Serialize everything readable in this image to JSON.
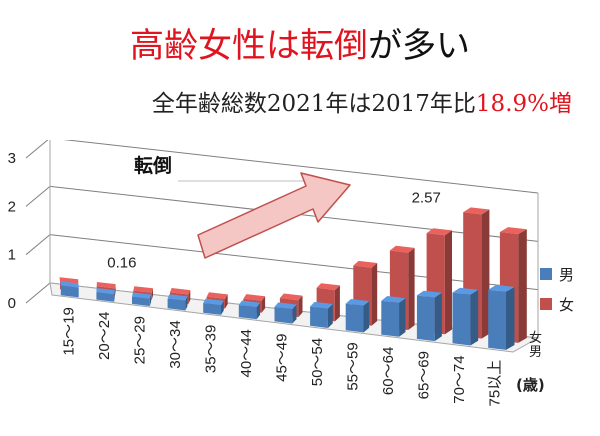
{
  "title": {
    "red_part": "高齢女性は転倒",
    "black_part": "が多い"
  },
  "subtitle": {
    "black_part": "全年齢総数2021年は2017年比",
    "red_part": "18.9%増"
  },
  "colors": {
    "accent_red": "#e0141e",
    "male": "#4a7ebb",
    "female": "#c0504d",
    "arrow_fill": "#f4c6c4",
    "arrow_stroke": "#c0504d"
  },
  "chart_data": {
    "type": "bar",
    "subtype": "3d-clustered",
    "title": "転倒",
    "categories": [
      "15～19",
      "20～24",
      "25～29",
      "30～34",
      "35～39",
      "40～44",
      "45～49",
      "50～54",
      "55～59",
      "60～64",
      "65～69",
      "70～74",
      "75以上"
    ],
    "series": [
      {
        "name": "男",
        "values": [
          0.2,
          0.15,
          0.15,
          0.2,
          0.2,
          0.25,
          0.3,
          0.4,
          0.55,
          0.7,
          0.9,
          1.05,
          1.2
        ]
      },
      {
        "name": "女",
        "values": [
          0.16,
          0.15,
          0.15,
          0.2,
          0.2,
          0.25,
          0.35,
          0.65,
          1.2,
          1.6,
          2.05,
          2.57,
          2.25
        ]
      }
    ],
    "ylim": [
      0,
      3
    ],
    "yticks": [
      "0",
      "1",
      "2",
      "3"
    ],
    "xlabel": "(歳)",
    "depth_labels": [
      "男",
      "女"
    ],
    "legend": [
      {
        "name": "男",
        "color": "#4a7ebb"
      },
      {
        "name": "女",
        "color": "#c0504d"
      }
    ],
    "legend_position": "right",
    "annotations": [
      {
        "text": "0.16",
        "target": "15～19 女"
      },
      {
        "text": "2.57",
        "target": "70～74 女"
      }
    ],
    "grid": true
  }
}
